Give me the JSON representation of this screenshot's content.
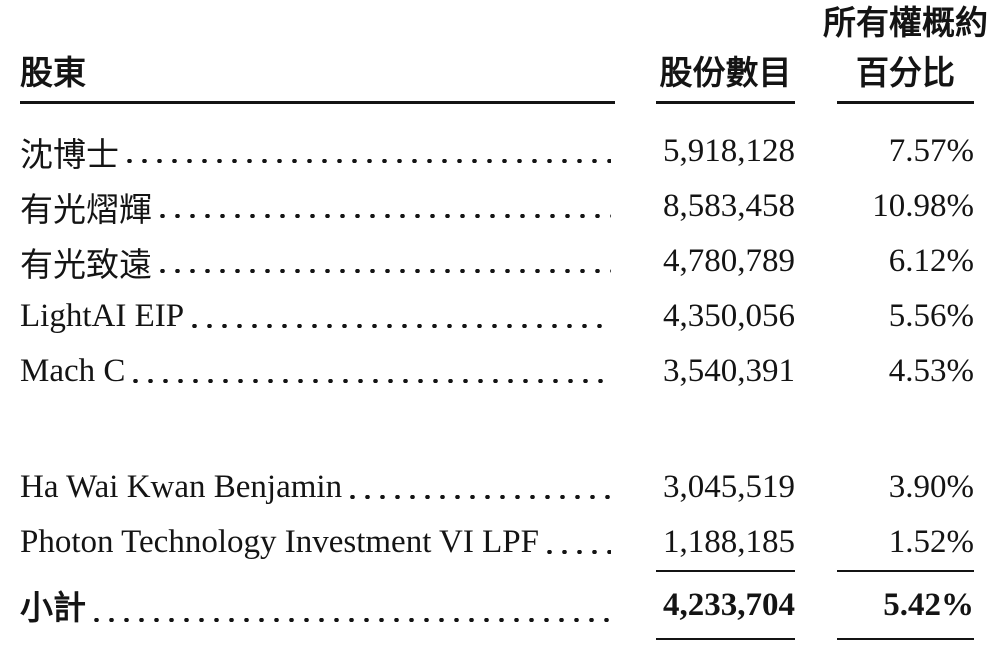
{
  "colors": {
    "ink": "#141414",
    "background": "#ffffff"
  },
  "table": {
    "header": {
      "shareholder": "股東",
      "shares": "股份數目",
      "ownership_line1": "所有權概約",
      "ownership_line2": "百分比"
    },
    "groups": [
      {
        "rows": [
          {
            "name": "沈博士",
            "shares": "5,918,128",
            "percent": "7.57%"
          },
          {
            "name": "有光熠輝",
            "shares": "8,583,458",
            "percent": "10.98%"
          },
          {
            "name": "有光致遠",
            "shares": "4,780,789",
            "percent": "6.12%"
          },
          {
            "name": "LightAI EIP",
            "shares": "4,350,056",
            "percent": "5.56%"
          },
          {
            "name": "Mach C",
            "shares": "3,540,391",
            "percent": "4.53%"
          }
        ]
      },
      {
        "rows": [
          {
            "name": "Ha Wai Kwan Benjamin",
            "shares": "3,045,519",
            "percent": "3.90%"
          },
          {
            "name": "Photon Technology Investment VI LPF",
            "shares": "1,188,185",
            "percent": "1.52%"
          }
        ]
      }
    ],
    "subtotal": {
      "name": "小計",
      "shares": "4,233,704",
      "percent": "5.42%"
    }
  }
}
